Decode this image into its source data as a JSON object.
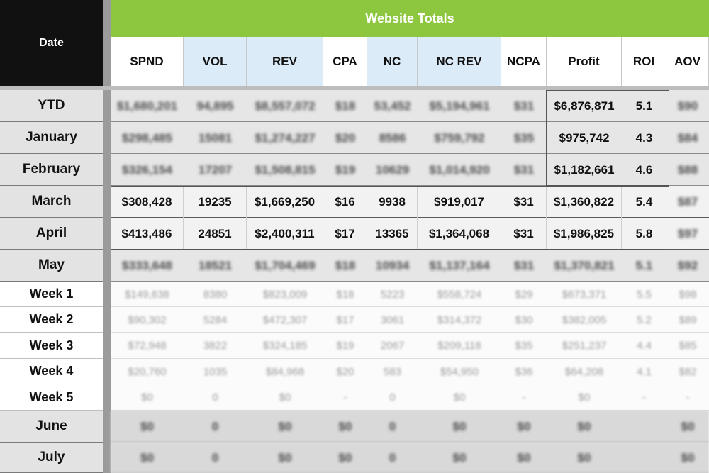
{
  "header": {
    "date_label": "Date",
    "banner": "Website Totals",
    "columns": [
      "SPND",
      "VOL",
      "REV",
      "CPA",
      "NC",
      "NC REV",
      "NCPA",
      "Profit",
      "ROI",
      "AOV"
    ]
  },
  "rows": [
    {
      "label": "YTD",
      "kind": "month",
      "cells": [
        "$1,680,201",
        "94,895",
        "$8,557,072",
        "$18",
        "53,452",
        "$5,194,961",
        "$31",
        "$6,876,871",
        "5.1",
        "$90"
      ]
    },
    {
      "label": "January",
      "kind": "month",
      "cells": [
        "$298,485",
        "15081",
        "$1,274,227",
        "$20",
        "8586",
        "$759,792",
        "$35",
        "$975,742",
        "4.3",
        "$84"
      ]
    },
    {
      "label": "February",
      "kind": "month",
      "cells": [
        "$326,154",
        "17207",
        "$1,508,815",
        "$19",
        "10629",
        "$1,014,920",
        "$31",
        "$1,182,661",
        "4.6",
        "$88"
      ]
    },
    {
      "label": "March",
      "kind": "month",
      "cells": [
        "$308,428",
        "19235",
        "$1,669,250",
        "$16",
        "9938",
        "$919,017",
        "$31",
        "$1,360,822",
        "5.4",
        "$87"
      ]
    },
    {
      "label": "April",
      "kind": "month",
      "cells": [
        "$413,486",
        "24851",
        "$2,400,311",
        "$17",
        "13365",
        "$1,364,068",
        "$31",
        "$1,986,825",
        "5.8",
        "$97"
      ]
    },
    {
      "label": "May",
      "kind": "month",
      "cells": [
        "$333,648",
        "18521",
        "$1,704,469",
        "$18",
        "10934",
        "$1,137,164",
        "$31",
        "$1,370,821",
        "5.1",
        "$92"
      ]
    },
    {
      "label": "Week 1",
      "kind": "week",
      "cells": [
        "$149,638",
        "8380",
        "$823,009",
        "$18",
        "5223",
        "$558,724",
        "$29",
        "$673,371",
        "5.5",
        "$98"
      ]
    },
    {
      "label": "Week 2",
      "kind": "week",
      "cells": [
        "$90,302",
        "5284",
        "$472,307",
        "$17",
        "3061",
        "$314,372",
        "$30",
        "$382,005",
        "5.2",
        "$89"
      ]
    },
    {
      "label": "Week 3",
      "kind": "week",
      "cells": [
        "$72,948",
        "3822",
        "$324,185",
        "$19",
        "2067",
        "$209,118",
        "$35",
        "$251,237",
        "4.4",
        "$85"
      ]
    },
    {
      "label": "Week 4",
      "kind": "week",
      "cells": [
        "$20,760",
        "1035",
        "$84,968",
        "$20",
        "583",
        "$54,950",
        "$36",
        "$64,208",
        "4.1",
        "$82"
      ]
    },
    {
      "label": "Week 5",
      "kind": "week",
      "cells": [
        "$0",
        "0",
        "$0",
        "-",
        "0",
        "$0",
        "-",
        "$0",
        "-",
        "-"
      ]
    },
    {
      "label": "June",
      "kind": "empty",
      "cells": [
        "$0",
        "0",
        "$0",
        "$0",
        "0",
        "$0",
        "$0",
        "$0",
        "",
        "$0"
      ]
    },
    {
      "label": "July",
      "kind": "empty",
      "cells": [
        "$0",
        "0",
        "$0",
        "$0",
        "0",
        "$0",
        "$0",
        "$0",
        "",
        "$0"
      ]
    }
  ],
  "colors": {
    "banner": "#8dc63f",
    "header_blue": "#dcebf8",
    "date_header": "#111111"
  }
}
